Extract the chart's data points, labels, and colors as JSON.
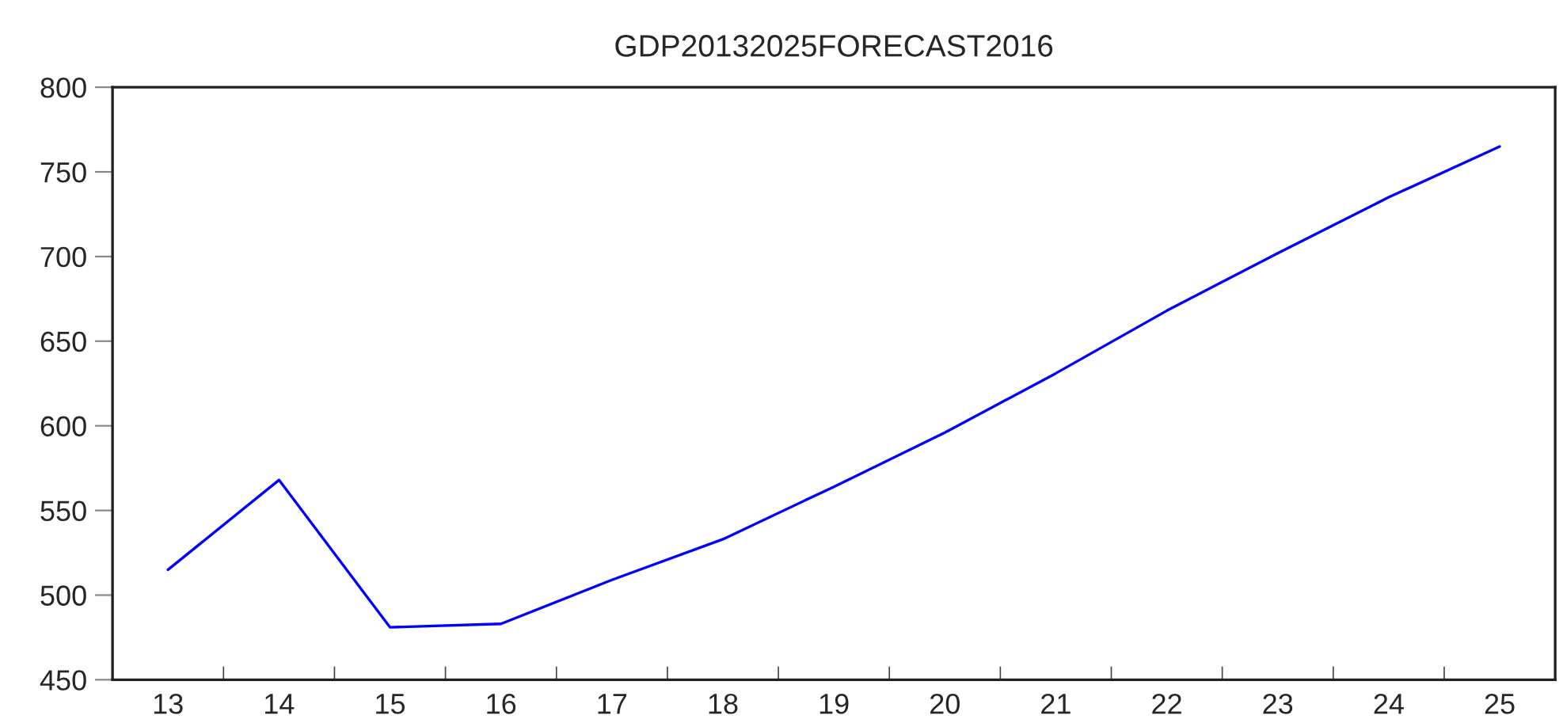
{
  "chart_data": {
    "type": "line",
    "title": "GDP20132025FORECAST2016",
    "categories": [
      "13",
      "14",
      "15",
      "16",
      "17",
      "18",
      "19",
      "20",
      "21",
      "22",
      "23",
      "24",
      "25"
    ],
    "series": [
      {
        "color": "#0000ff",
        "values": [
          515,
          568,
          481,
          483,
          509,
          533,
          564,
          596,
          631,
          668,
          702,
          735,
          765
        ]
      }
    ],
    "ylim": [
      450,
      800
    ],
    "yticks": [
      450,
      500,
      550,
      600,
      650,
      700,
      750,
      800
    ],
    "grid": false,
    "marker": "none",
    "line_style": "solid"
  }
}
